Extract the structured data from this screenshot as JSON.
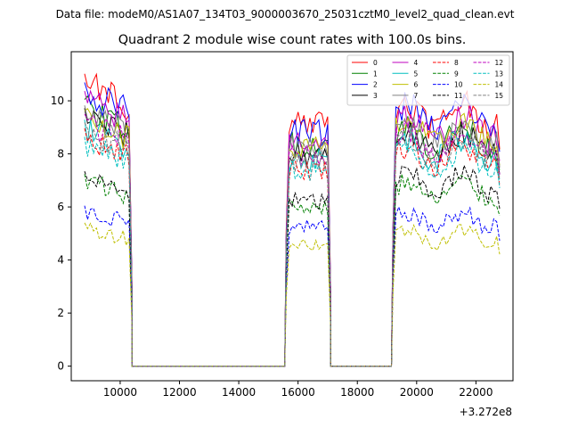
{
  "figure": {
    "suptitle": "Data file: modeM0/AS1A07_134T03_9000003670_25031cztM0_level2_quad_clean.evt"
  },
  "chart_data": {
    "type": "line",
    "title": "Quadrant 2 module wise count rates with 100.0s bins.",
    "xlabel": "",
    "ylabel": "",
    "x_offset_label": "+3.272e8",
    "x_ticks": [
      "10000",
      "12000",
      "14000",
      "16000",
      "18000",
      "20000",
      "22000"
    ],
    "x_tick_values": [
      10000,
      12000,
      14000,
      16000,
      18000,
      20000,
      22000
    ],
    "y_ticks": [
      "0",
      "2",
      "4",
      "6",
      "8",
      "10"
    ],
    "y_tick_values": [
      0,
      2,
      4,
      6,
      8,
      10
    ],
    "xlim": [
      8350,
      23250
    ],
    "ylim": [
      -0.55,
      11.85
    ],
    "grid": false,
    "legend_placement": "top-right",
    "legend_columns": 4,
    "x_segments": [
      [
        8800,
        10350
      ],
      [
        15600,
        17050
      ],
      [
        19200,
        22800
      ]
    ],
    "bin_step": 100,
    "gap_value": 0,
    "series": [
      {
        "name": "0",
        "color": "#ff0000",
        "dash": "solid",
        "levels": [
          10.2,
          9.2,
          9.5
        ]
      },
      {
        "name": "1",
        "color": "#008000",
        "dash": "solid",
        "levels": [
          9.3,
          8.4,
          8.6
        ]
      },
      {
        "name": "2",
        "color": "#0000ff",
        "dash": "solid",
        "levels": [
          9.9,
          8.8,
          9.4
        ]
      },
      {
        "name": "3",
        "color": "#000000",
        "dash": "solid",
        "levels": [
          9.0,
          8.0,
          8.4
        ]
      },
      {
        "name": "4",
        "color": "#bf00bf",
        "dash": "solid",
        "levels": [
          9.6,
          8.5,
          9.0
        ]
      },
      {
        "name": "5",
        "color": "#00bfbf",
        "dash": "solid",
        "levels": [
          8.6,
          7.8,
          8.2
        ]
      },
      {
        "name": "6",
        "color": "#bfbf00",
        "dash": "solid",
        "levels": [
          8.9,
          8.2,
          8.8
        ]
      },
      {
        "name": "7",
        "color": "#808080",
        "dash": "solid",
        "levels": [
          9.1,
          8.3,
          8.7
        ]
      },
      {
        "name": "8",
        "color": "#ff0000",
        "dash": "dashed",
        "levels": [
          8.3,
          7.4,
          7.9
        ]
      },
      {
        "name": "9",
        "color": "#008000",
        "dash": "dashed",
        "levels": [
          6.7,
          6.0,
          6.6
        ]
      },
      {
        "name": "10",
        "color": "#0000ff",
        "dash": "dashed",
        "levels": [
          5.6,
          5.2,
          5.5
        ]
      },
      {
        "name": "11",
        "color": "#000000",
        "dash": "dashed",
        "levels": [
          6.8,
          6.2,
          6.9
        ]
      },
      {
        "name": "12",
        "color": "#bf00bf",
        "dash": "dashed",
        "levels": [
          8.8,
          8.0,
          8.4
        ]
      },
      {
        "name": "13",
        "color": "#00bfbf",
        "dash": "dashed",
        "levels": [
          8.0,
          7.4,
          7.8
        ]
      },
      {
        "name": "14",
        "color": "#bfbf00",
        "dash": "dashed",
        "levels": [
          5.0,
          4.6,
          4.9
        ]
      },
      {
        "name": "15",
        "color": "#808080",
        "dash": "dashed",
        "levels": [
          8.5,
          7.8,
          8.2
        ]
      }
    ]
  }
}
